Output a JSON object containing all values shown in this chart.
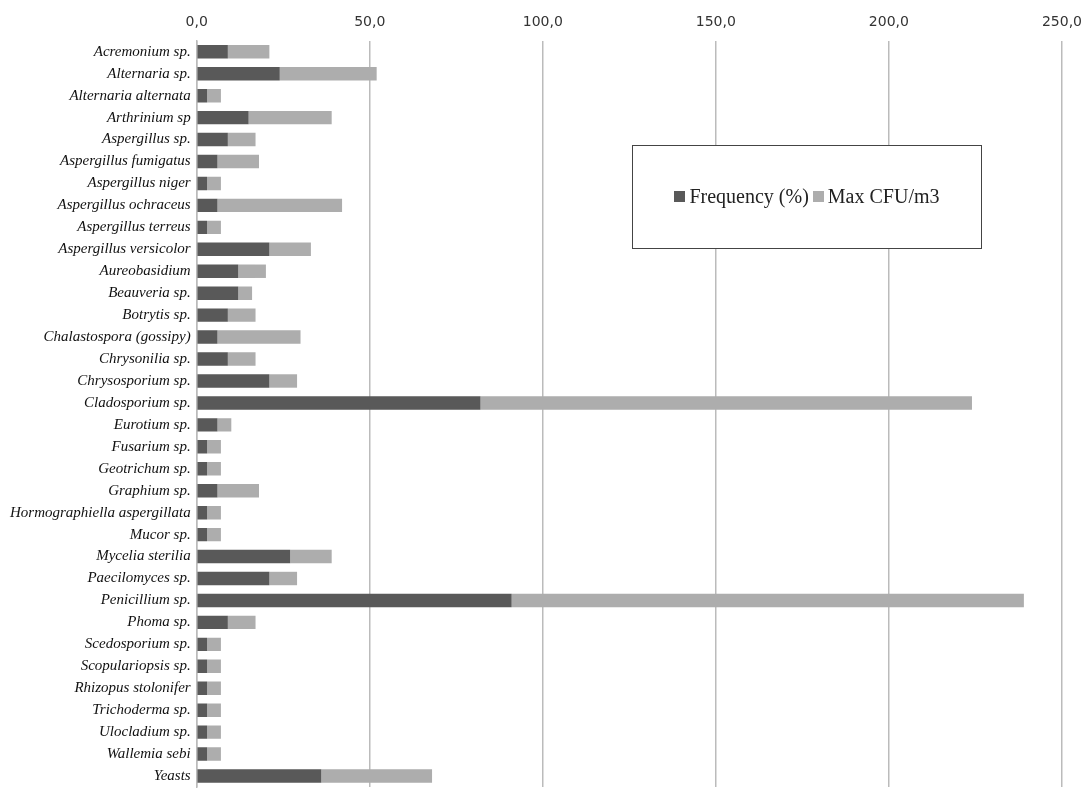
{
  "chart_data": {
    "type": "bar",
    "orientation": "horizontal",
    "stacked": true,
    "categories": [
      "Acremonium sp.",
      "Alternaria sp.",
      "Alternaria alternata",
      "Arthrinium sp",
      "Aspergillus sp.",
      "Aspergillus fumigatus",
      "Aspergillus niger",
      "Aspergillus ochraceus",
      "Aspergillus terreus",
      "Aspergillus versicolor",
      "Aureobasidium",
      "Beauveria sp.",
      "Botrytis sp.",
      "Chalastospora (gossipy)",
      "Chrysonilia sp.",
      "Chrysosporium sp.",
      "Cladosporium sp.",
      "Eurotium sp.",
      "Fusarium sp.",
      "Geotrichum sp.",
      "Graphium sp.",
      "Hormographiella aspergillata",
      "Mucor sp.",
      "Mycelia sterilia",
      "Paecilomyces sp.",
      "Penicillium sp.",
      "Phoma sp.",
      "Scedosporium sp.",
      "Scopulariopsis sp.",
      "Rhizopus stolonifer",
      "Trichoderma sp.",
      "Ulocladium sp.",
      "Wallemia sebi",
      "Yeasts"
    ],
    "series": [
      {
        "name": "Frequency (%)",
        "color": "#595959",
        "values": [
          9,
          24,
          3,
          15,
          9,
          6,
          3,
          6,
          3,
          21,
          12,
          12,
          9,
          6,
          9,
          21,
          82,
          6,
          3,
          3,
          6,
          3,
          3,
          27,
          21,
          91,
          9,
          3,
          3,
          3,
          3,
          3,
          3,
          36
        ]
      },
      {
        "name": "Max CFU/m3",
        "color": "#adadad",
        "values": [
          12,
          28,
          4,
          24,
          8,
          12,
          4,
          36,
          4,
          12,
          8,
          4,
          8,
          24,
          8,
          8,
          142,
          4,
          4,
          4,
          12,
          4,
          4,
          12,
          8,
          148,
          8,
          4,
          4,
          4,
          4,
          4,
          4,
          32
        ]
      }
    ],
    "xlim": [
      0,
      250
    ],
    "xticks": [
      {
        "value": 0,
        "label": "0,0"
      },
      {
        "value": 50,
        "label": "50,0"
      },
      {
        "value": 100,
        "label": "100,0"
      },
      {
        "value": 150,
        "label": "150,0"
      },
      {
        "value": 200,
        "label": "200,0"
      },
      {
        "value": 250,
        "label": "250,0"
      }
    ],
    "grid": "x",
    "legend": "top right"
  }
}
